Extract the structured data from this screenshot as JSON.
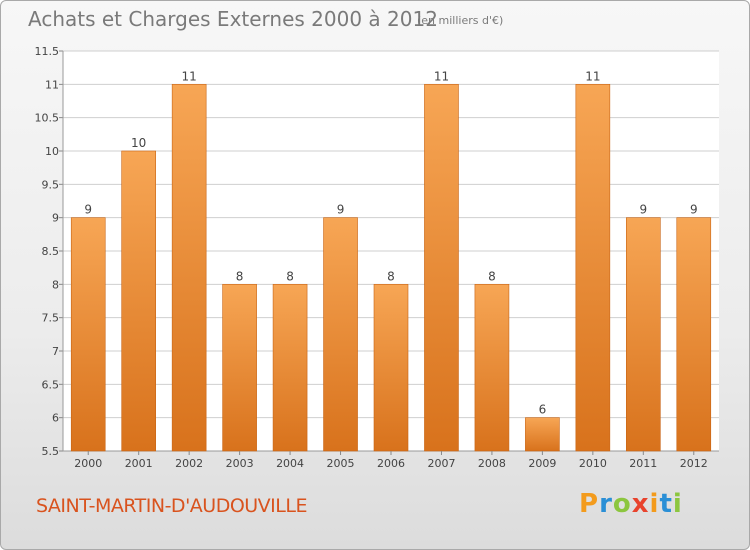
{
  "header": {
    "title": "Achats et Charges Externes 2000 à 2012",
    "unit": "(en milliers d'€)"
  },
  "footer": {
    "commune": "SAINT-MARTIN-D'AUDOUVILLE",
    "logo": [
      "P",
      "r",
      "o",
      "x",
      "i",
      "t",
      "i"
    ],
    "logo_colors": [
      "#f39b1c",
      "#2a8fd6",
      "#8cc63f",
      "#e8432d",
      "#f39b1c",
      "#2a8fd6",
      "#8cc63f"
    ]
  },
  "colors": {
    "bar_top": "#f7a655",
    "bar_bottom": "#d8721c",
    "bar_edge": "#c86414",
    "grid": "#cfcfcf",
    "plot_bg": "#ffffff"
  },
  "chart_data": {
    "type": "bar",
    "title": "Achats et Charges Externes 2000 à 2012",
    "xlabel": "",
    "ylabel": "",
    "categories": [
      "2000",
      "2001",
      "2002",
      "2003",
      "2004",
      "2005",
      "2006",
      "2007",
      "2008",
      "2009",
      "2010",
      "2011",
      "2012"
    ],
    "values": [
      9,
      10,
      11,
      8,
      8,
      9,
      8,
      11,
      8,
      6,
      11,
      9,
      9
    ],
    "data_labels": [
      "9",
      "10",
      "11",
      "8",
      "8",
      "9",
      "8",
      "11",
      "8",
      "6",
      "11",
      "9",
      "9"
    ],
    "ylim": [
      5.5,
      11.5
    ],
    "yticks": [
      "5.5",
      "6",
      "6.5",
      "7",
      "7.5",
      "8",
      "8.5",
      "9",
      "9.5",
      "10",
      "10.5",
      "11",
      "11.5"
    ],
    "grid": true,
    "legend": "none"
  }
}
